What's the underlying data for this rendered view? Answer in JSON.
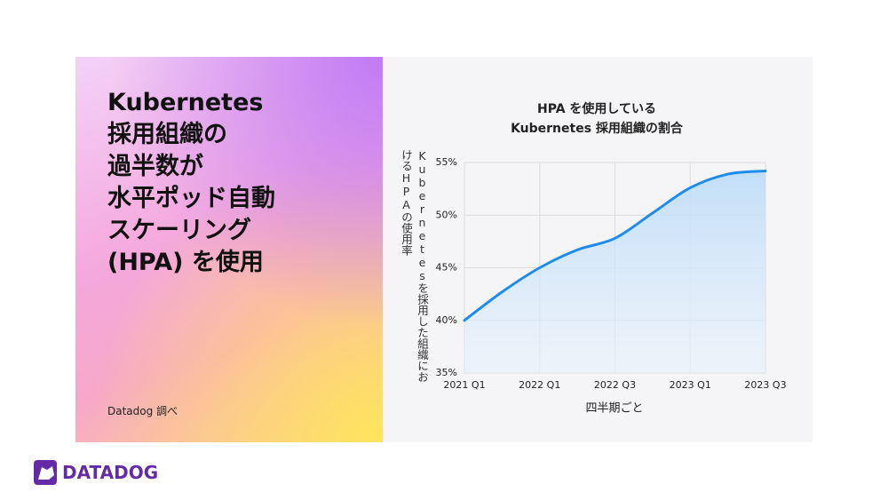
{
  "headline": [
    "Kubernetes",
    "採用組織の",
    "過半数が",
    "水平ポッド自動",
    "スケーリング",
    "(HPA) を使用"
  ],
  "source": "Datadog 調べ",
  "brand": "DATADOG",
  "chart_data": {
    "type": "line",
    "title": [
      "HPA を使用している",
      "Kubernetes 採用組織の割合"
    ],
    "y_label": "Kubernetesを採用した組織におけるHPAの使用率",
    "x_label": "四半期ごと",
    "categories": [
      "2021 Q1",
      null,
      "2022 Q1",
      null,
      "2022 Q3",
      null,
      "2023 Q1",
      null,
      "2023 Q3"
    ],
    "series": [
      {
        "name": "HPA",
        "color": "#1f8ceb",
        "values": [
          40,
          42.7,
          45,
          46.7,
          47.8,
          50.2,
          52.6,
          53.9,
          54.2
        ]
      }
    ],
    "ylim": [
      35,
      55
    ],
    "yticks": [
      {
        "value": 35,
        "label": "35%"
      },
      {
        "value": 40,
        "label": "40%"
      },
      {
        "value": 45,
        "label": "45%"
      },
      {
        "value": 50,
        "label": "50%"
      },
      {
        "value": 55,
        "label": "55%"
      }
    ],
    "grid": true
  }
}
